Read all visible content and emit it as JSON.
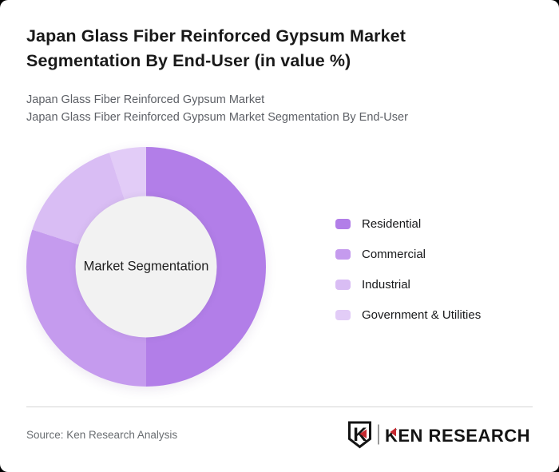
{
  "header": {
    "title": "Japan Glass Fiber Reinforced Gypsum Market Segmentation By End-User (in value %)",
    "subtitle1": "Japan Glass Fiber Reinforced Gypsum Market",
    "subtitle2": "Japan Glass Fiber Reinforced Gypsum Market Segmentation By End-User"
  },
  "chart_data": {
    "type": "pie",
    "variant": "donut",
    "title": "Japan Glass Fiber Reinforced Gypsum Market Segmentation By End-User (in value %)",
    "center_label": "Market Segmentation",
    "categories": [
      "Residential",
      "Commercial",
      "Industrial",
      "Government & Utilities"
    ],
    "values": [
      50,
      30,
      15,
      5
    ],
    "unit": "value %",
    "colors": [
      "#b27ee8",
      "#c59bee",
      "#d9bdf4",
      "#e2ccf7"
    ],
    "start_angle_deg": 0,
    "direction": "clockwise",
    "legend_position": "right",
    "inner_radius_ratio": 0.59,
    "hole_color": "#f2f2f2"
  },
  "footer": {
    "source": "Source: Ken Research Analysis",
    "logo": {
      "brand": "KEN RESEARCH",
      "accent_color": "#c5282f",
      "bar_color": "#8e8e8e",
      "ink_color": "#141414"
    }
  }
}
